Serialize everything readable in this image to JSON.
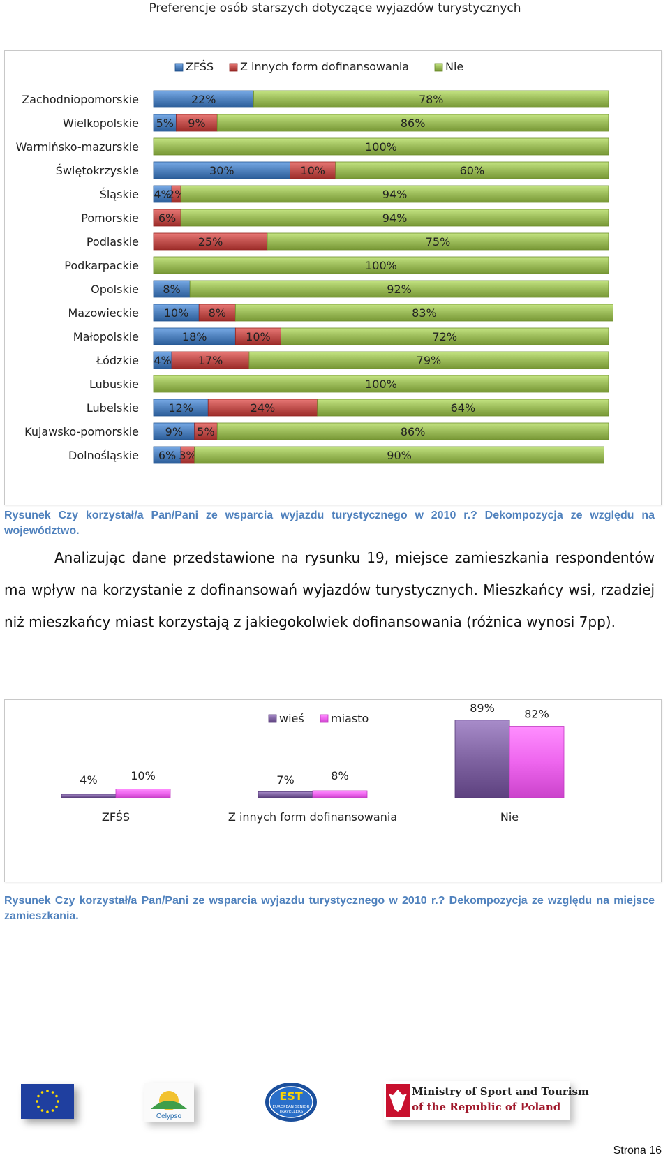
{
  "header": {
    "title": "Preferencje osób starszych dotyczące wyjazdów turystycznych"
  },
  "chart_data": [
    {
      "type": "bar",
      "orientation": "horizontal",
      "stacked": true,
      "legend_position": "top",
      "categories": [
        "Zachodniopomorskie",
        "Wielkopolskie",
        "Warmińsko-mazurskie",
        "Świętokrzyskie",
        "Śląskie",
        "Pomorskie",
        "Podlaskie",
        "Podkarpackie",
        "Opolskie",
        "Mazowieckie",
        "Małopolskie",
        "Łódzkie",
        "Lubuskie",
        "Lubelskie",
        "Kujawsko-pomorskie",
        "Dolnośląskie"
      ],
      "series": [
        {
          "name": "ZFŚS",
          "color": "#4f81bd",
          "values": [
            22,
            5,
            0,
            30,
            4,
            0,
            0,
            0,
            8,
            10,
            18,
            4,
            0,
            12,
            9,
            6
          ]
        },
        {
          "name": "Z innych form dofinansowania",
          "color": "#c0504d",
          "values": [
            0,
            9,
            0,
            10,
            2,
            6,
            25,
            0,
            0,
            8,
            10,
            17,
            0,
            24,
            5,
            3
          ]
        },
        {
          "name": "Nie",
          "color": "#9bbb59",
          "values": [
            78,
            86,
            100,
            60,
            94,
            94,
            75,
            100,
            92,
            83,
            72,
            79,
            100,
            64,
            86,
            90
          ]
        }
      ],
      "xlim": [
        0,
        100
      ],
      "value_format": "percent"
    },
    {
      "type": "bar",
      "orientation": "vertical",
      "legend_position": "top",
      "categories": [
        "ZFŚS",
        "Z innych form dofinansowania",
        "Nie"
      ],
      "series": [
        {
          "name": "wieś",
          "color": "#8064a2",
          "values": [
            4,
            7,
            89
          ]
        },
        {
          "name": "miasto",
          "color": "#ee66ee",
          "values": [
            10,
            8,
            82
          ]
        }
      ],
      "ylim": [
        0,
        100
      ],
      "value_format": "percent"
    }
  ],
  "captions": {
    "figure1": "Rysunek  Czy korzystał/a Pan/Pani ze wsparcia wyjazdu turystycznego w 2010 r.? Dekompozycja ze względu na województwo.",
    "figure2": "Rysunek  Czy korzystał/a Pan/Pani ze wsparcia wyjazdu turystycznego w 2010 r.? Dekompozycja ze względu na miejsce zamieszkania."
  },
  "paragraph": "Analizując dane przedstawione na rysunku 19, miejsce zamieszkania respondentów ma wpływ na korzystanie z dofinansowań wyjazdów turystycznych. Mieszkańcy wsi, rzadziej niż mieszkańcy miast korzystają z jakiegokolwiek dofinansowania (różnica wynosi 7pp).",
  "logos": {
    "eu": "eu-flag-logo",
    "celypso": "Celypso",
    "est_line1": "EST",
    "est_line2": "EUROPEAN SENIOR",
    "est_line3": "TRAVELLERS",
    "ministry_line1": "Ministry of Sport and Tourism",
    "ministry_line2": "of the Republic of Poland"
  },
  "footer": {
    "page_label": "Strona 16"
  }
}
